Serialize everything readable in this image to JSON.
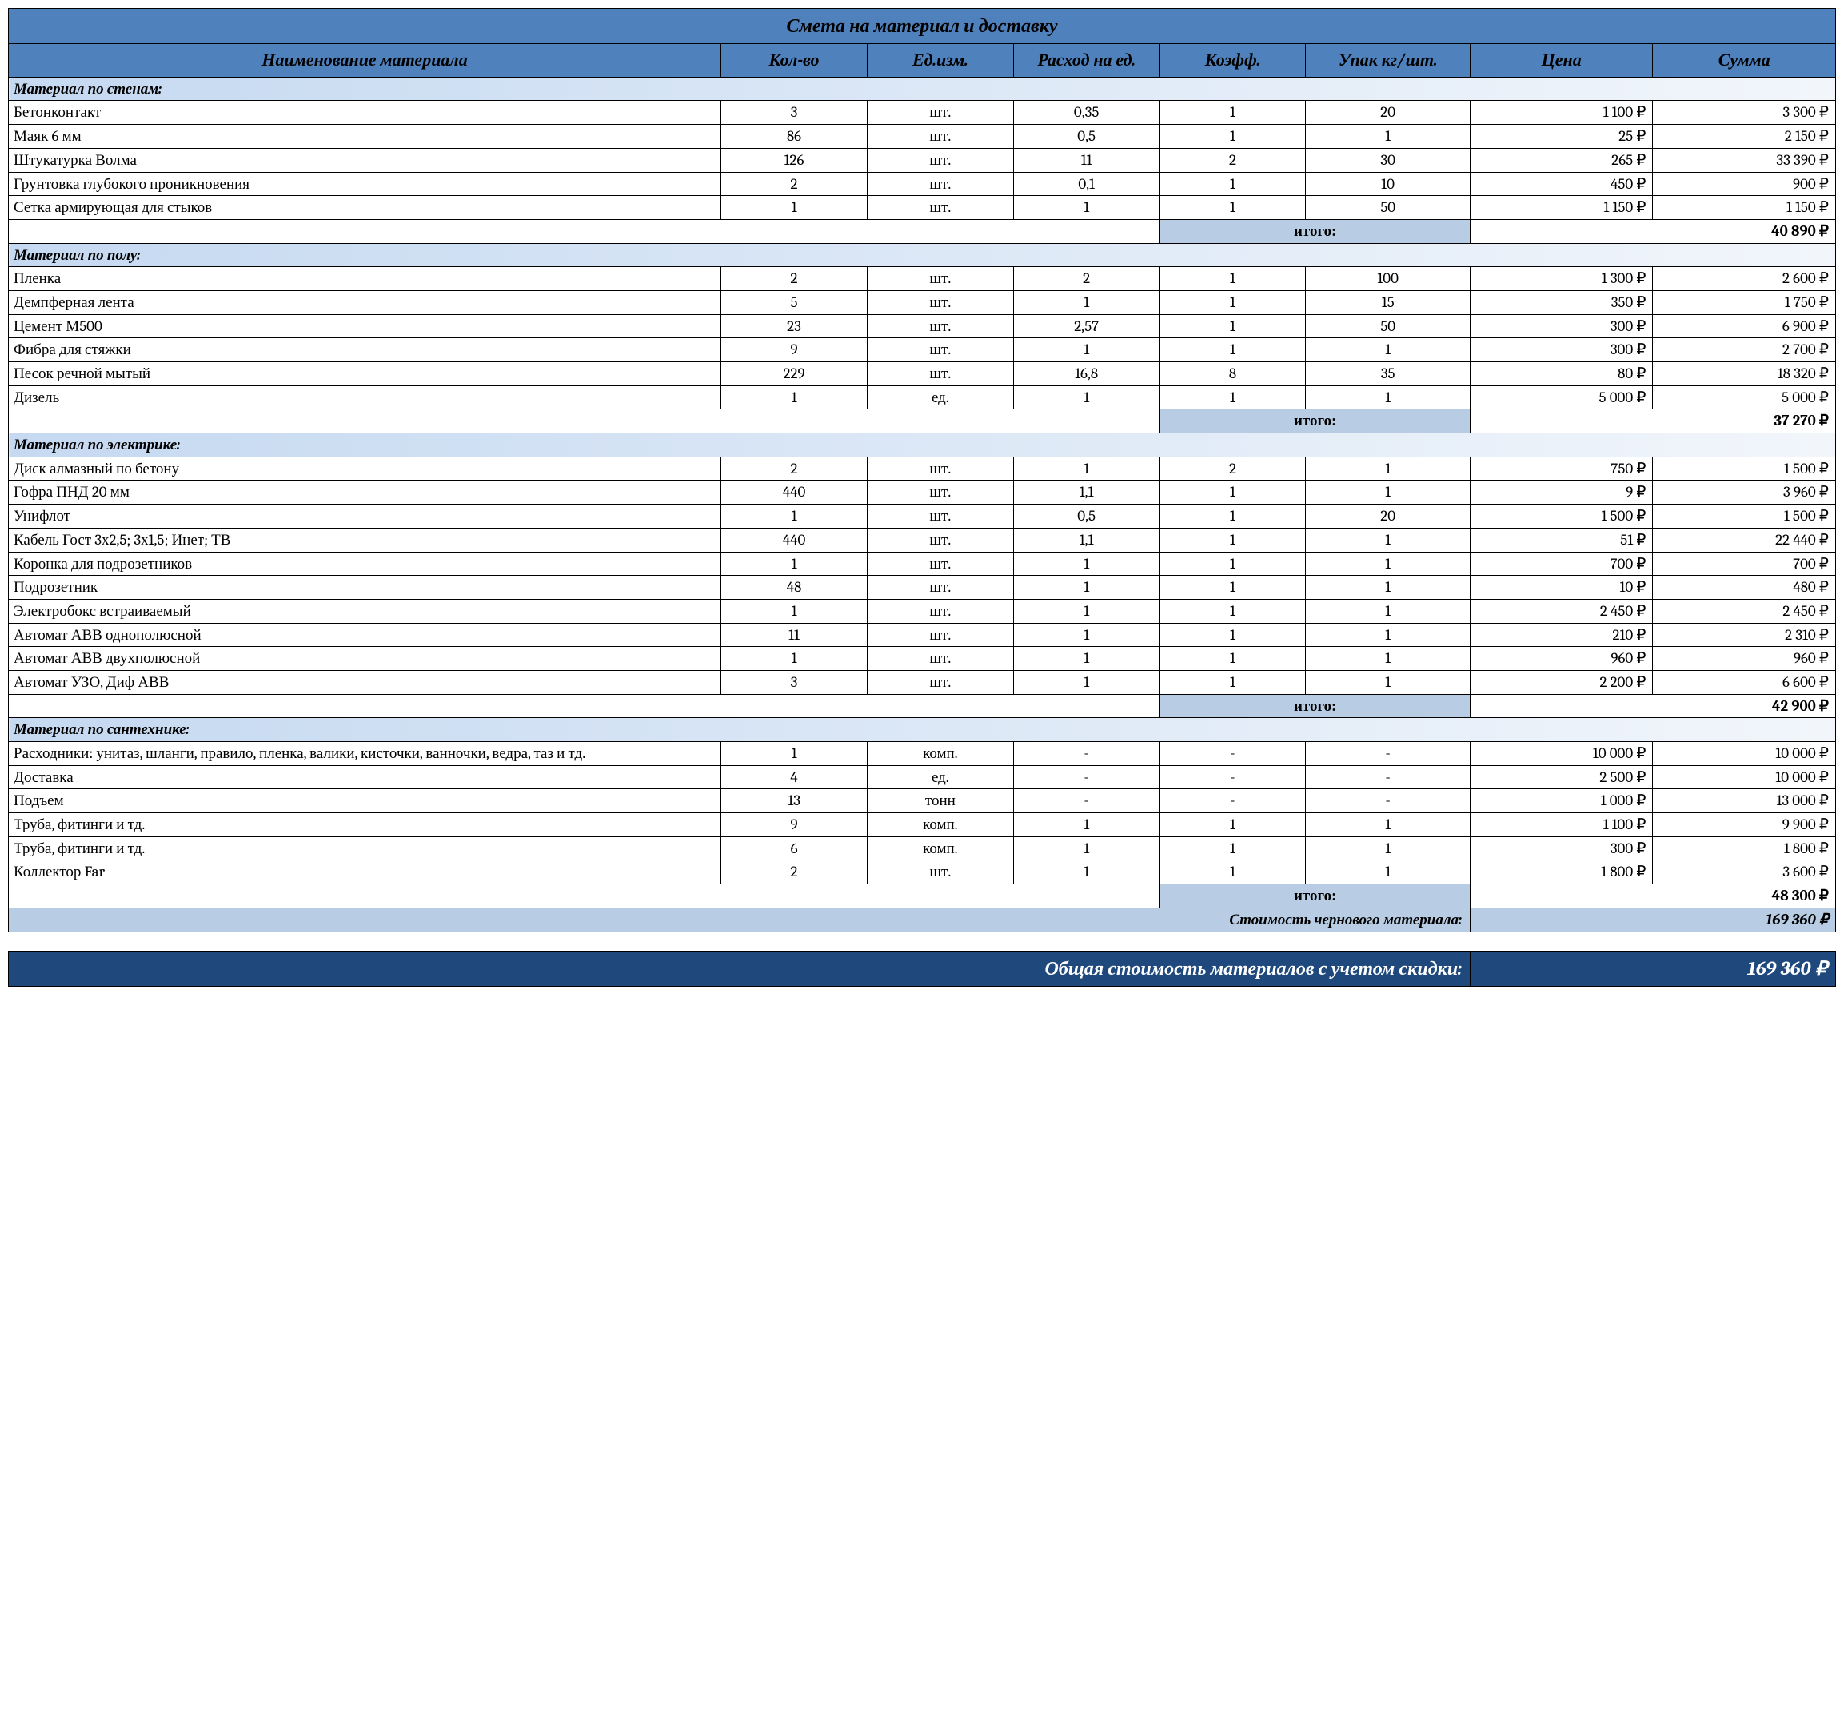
{
  "title": "Смета на материал и доставку",
  "columns": [
    "Наименование материала",
    "Кол-во",
    "Ед.изм.",
    "Расход на ед.",
    "Коэфф.",
    "Упак кг/шт.",
    "Цена",
    "Сумма"
  ],
  "subtotal_label": "итого:",
  "sections": [
    {
      "heading": "Материал по стенам:",
      "rows": [
        {
          "name": "Бетонконтакт",
          "qty": "3",
          "unit": "шт.",
          "cons": "0,35",
          "coef": "1",
          "pack": "20",
          "price": "1 100 ₽",
          "sum": "3 300 ₽"
        },
        {
          "name": "Маяк 6 мм",
          "qty": "86",
          "unit": "шт.",
          "cons": "0,5",
          "coef": "1",
          "pack": "1",
          "price": "25 ₽",
          "sum": "2 150 ₽"
        },
        {
          "name": "Штукатурка Волма",
          "qty": "126",
          "unit": "шт.",
          "cons": "11",
          "coef": "2",
          "pack": "30",
          "price": "265 ₽",
          "sum": "33 390 ₽"
        },
        {
          "name": "Грунтовка глубокого проникновения",
          "qty": "2",
          "unit": "шт.",
          "cons": "0,1",
          "coef": "1",
          "pack": "10",
          "price": "450 ₽",
          "sum": "900 ₽"
        },
        {
          "name": "Сетка армирующая для стыков",
          "qty": "1",
          "unit": "шт.",
          "cons": "1",
          "coef": "1",
          "pack": "50",
          "price": "1 150 ₽",
          "sum": "1 150 ₽"
        }
      ],
      "subtotal": "40 890 ₽"
    },
    {
      "heading": "Материал по полу:",
      "rows": [
        {
          "name": "Пленка",
          "qty": "2",
          "unit": "шт.",
          "cons": "2",
          "coef": "1",
          "pack": "100",
          "price": "1 300 ₽",
          "sum": "2 600 ₽"
        },
        {
          "name": "Демпферная лента",
          "qty": "5",
          "unit": "шт.",
          "cons": "1",
          "coef": "1",
          "pack": "15",
          "price": "350 ₽",
          "sum": "1 750 ₽"
        },
        {
          "name": "Цемент М500",
          "qty": "23",
          "unit": "шт.",
          "cons": "2,57",
          "coef": "1",
          "pack": "50",
          "price": "300 ₽",
          "sum": "6 900 ₽"
        },
        {
          "name": "Фибра для стяжки",
          "qty": "9",
          "unit": "шт.",
          "cons": "1",
          "coef": "1",
          "pack": "1",
          "price": "300 ₽",
          "sum": "2 700 ₽"
        },
        {
          "name": "Песок речной мытый",
          "qty": "229",
          "unit": "шт.",
          "cons": "16,8",
          "coef": "8",
          "pack": "35",
          "price": "80 ₽",
          "sum": "18 320 ₽"
        },
        {
          "name": "Дизель",
          "qty": "1",
          "unit": "ед.",
          "cons": "1",
          "coef": "1",
          "pack": "1",
          "price": "5 000 ₽",
          "sum": "5 000 ₽"
        }
      ],
      "subtotal": "37 270 ₽"
    },
    {
      "heading": "Материал по электрике:",
      "rows": [
        {
          "name": "Диск алмазный по бетону",
          "qty": "2",
          "unit": "шт.",
          "cons": "1",
          "coef": "2",
          "pack": "1",
          "price": "750 ₽",
          "sum": "1 500 ₽"
        },
        {
          "name": "Гофра ПНД 20 мм",
          "qty": "440",
          "unit": "шт.",
          "cons": "1,1",
          "coef": "1",
          "pack": "1",
          "price": "9 ₽",
          "sum": "3 960 ₽"
        },
        {
          "name": "Унифлот",
          "qty": "1",
          "unit": "шт.",
          "cons": "0,5",
          "coef": "1",
          "pack": "20",
          "price": "1 500 ₽",
          "sum": "1 500 ₽"
        },
        {
          "name": "Кабель Гост 3х2,5; 3х1,5; Инет; ТВ",
          "qty": "440",
          "unit": "шт.",
          "cons": "1,1",
          "coef": "1",
          "pack": "1",
          "price": "51 ₽",
          "sum": "22 440 ₽"
        },
        {
          "name": "Коронка для подрозетников",
          "qty": "1",
          "unit": "шт.",
          "cons": "1",
          "coef": "1",
          "pack": "1",
          "price": "700 ₽",
          "sum": "700 ₽"
        },
        {
          "name": "Подрозетник",
          "qty": "48",
          "unit": "шт.",
          "cons": "1",
          "coef": "1",
          "pack": "1",
          "price": "10 ₽",
          "sum": "480 ₽"
        },
        {
          "name": "Электробокс встраиваемый",
          "qty": "1",
          "unit": "шт.",
          "cons": "1",
          "coef": "1",
          "pack": "1",
          "price": "2 450 ₽",
          "sum": "2 450 ₽"
        },
        {
          "name": "Автомат АВВ однополюсной",
          "qty": "11",
          "unit": "шт.",
          "cons": "1",
          "coef": "1",
          "pack": "1",
          "price": "210 ₽",
          "sum": "2 310 ₽"
        },
        {
          "name": "Автомат АВВ двухполюсной",
          "qty": "1",
          "unit": "шт.",
          "cons": "1",
          "coef": "1",
          "pack": "1",
          "price": "960 ₽",
          "sum": "960 ₽"
        },
        {
          "name": "Автомат УЗО, Диф АВВ",
          "qty": "3",
          "unit": "шт.",
          "cons": "1",
          "coef": "1",
          "pack": "1",
          "price": "2 200 ₽",
          "sum": "6 600 ₽"
        }
      ],
      "subtotal": "42 900 ₽"
    },
    {
      "heading": "Материал по сантехнике:",
      "rows": [
        {
          "name": "Расходники: унитаз, шланги, правило, пленка, валики, кисточки, ванночки, ведра, таз и тд.",
          "qty": "1",
          "unit": "комп.",
          "cons": "-",
          "coef": "-",
          "pack": "-",
          "price": "10 000 ₽",
          "sum": "10 000 ₽"
        },
        {
          "name": "Доставка",
          "qty": "4",
          "unit": "ед.",
          "cons": "-",
          "coef": "-",
          "pack": "-",
          "price": "2 500 ₽",
          "sum": "10 000 ₽"
        },
        {
          "name": "Подъем",
          "qty": "13",
          "unit": "тонн",
          "cons": "-",
          "coef": "-",
          "pack": "-",
          "price": "1 000 ₽",
          "sum": "13 000 ₽"
        },
        {
          "name": "Труба, фитинги и тд.",
          "qty": "9",
          "unit": "комп.",
          "cons": "1",
          "coef": "1",
          "pack": "1",
          "price": "1 100 ₽",
          "sum": "9 900 ₽"
        },
        {
          "name": "Труба, фитинги и тд.",
          "qty": "6",
          "unit": "комп.",
          "cons": "1",
          "coef": "1",
          "pack": "1",
          "price": "300 ₽",
          "sum": "1 800 ₽"
        },
        {
          "name": "Коллектор Far",
          "qty": "2",
          "unit": "шт.",
          "cons": "1",
          "coef": "1",
          "pack": "1",
          "price": "1 800 ₽",
          "sum": "3 600 ₽"
        }
      ],
      "subtotal": "48 300 ₽"
    }
  ],
  "grand_total": {
    "label": "Стоимость чернового материала:",
    "value": "169 360 ₽"
  },
  "final": {
    "label": "Общая стоимость материалов с учетом скидки:",
    "value": "169 360 ₽"
  },
  "colors": {
    "header_bg": "#4f81bd",
    "section_bg_from": "#c5d9f1",
    "section_bg_to": "#f2f6fb",
    "subtotal_bg": "#b8cce4",
    "final_bg": "#1f497d",
    "final_fg": "#ffffff",
    "border": "#000000"
  }
}
